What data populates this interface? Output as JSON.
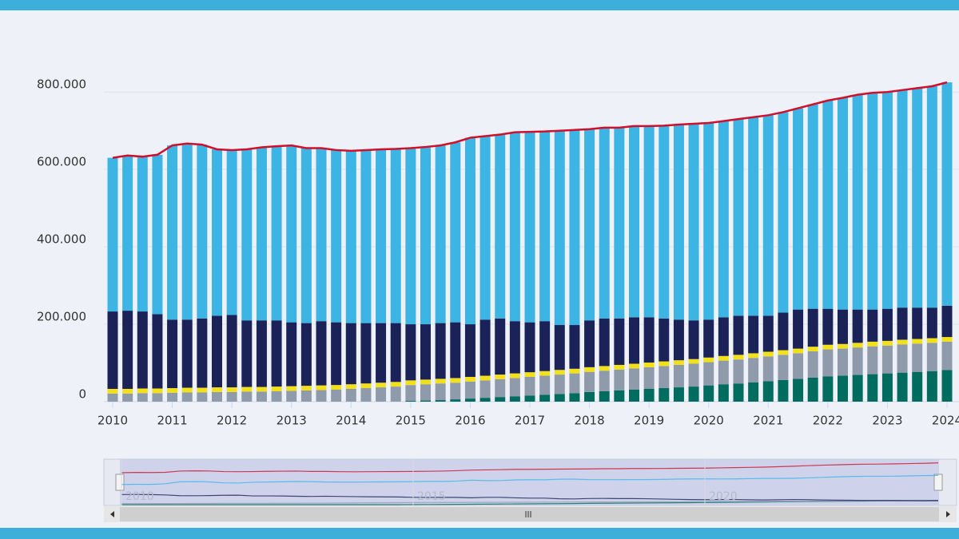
{
  "chart_data": {
    "type": "bar",
    "stacked": true,
    "categories": [
      "2010",
      null,
      null,
      null,
      "2011",
      null,
      null,
      null,
      "2012",
      null,
      null,
      null,
      "2013",
      null,
      null,
      null,
      "2014",
      null,
      null,
      null,
      "2015",
      null,
      null,
      null,
      "2016",
      null,
      null,
      null,
      "2017",
      null,
      null,
      null,
      "2018",
      null,
      null,
      null,
      "2019",
      null,
      null,
      null,
      "2020",
      null,
      null,
      null,
      "2021",
      null,
      null,
      null,
      "2022",
      null,
      null,
      null,
      "2023",
      null,
      null,
      null,
      "2024"
    ],
    "ylim": [
      0,
      850000
    ],
    "yticks": [
      0,
      {
        "value": 200000,
        "label": "200.000"
      },
      {
        "value": 400000,
        "label": "400.000"
      },
      {
        "value": 600000,
        "label": "600.000"
      },
      {
        "value": 800000,
        "label": "800.000"
      }
    ],
    "grid": true,
    "series": [
      {
        "color": "#006b5f",
        "values": [
          0,
          0,
          0,
          0,
          0,
          0,
          0,
          0,
          0,
          0,
          0,
          0,
          0,
          0,
          0,
          0,
          0,
          0,
          0,
          0,
          2000,
          3000,
          4000,
          6000,
          8000,
          10000,
          12000,
          14000,
          16000,
          18000,
          20000,
          22000,
          25000,
          27000,
          29000,
          31000,
          33000,
          35000,
          37000,
          39000,
          42000,
          45000,
          47000,
          50000,
          53000,
          56000,
          59000,
          62000,
          65000,
          67000,
          69000,
          71000,
          73000,
          75000,
          77000,
          79000,
          82000
        ]
      },
      {
        "color": "#8f9bab",
        "values": [
          21000,
          21000,
          22000,
          22000,
          23000,
          24000,
          24000,
          25000,
          25000,
          26000,
          26000,
          27000,
          28000,
          29000,
          30000,
          31000,
          33000,
          35000,
          37000,
          39000,
          41000,
          42000,
          43000,
          43000,
          44000,
          45000,
          46000,
          47000,
          48000,
          49000,
          50000,
          51000,
          52000,
          53000,
          54000,
          55000,
          56000,
          57000,
          58000,
          59000,
          60000,
          61000,
          62000,
          63000,
          64000,
          65000,
          66000,
          68000,
          70000,
          70000,
          71000,
          72000,
          72000,
          73000,
          73000,
          73000,
          73000
        ]
      },
      {
        "color": "#f2e01a",
        "values": [
          12000,
          12000,
          12000,
          12000,
          12000,
          12000,
          12000,
          12000,
          12000,
          12000,
          12000,
          12000,
          12000,
          12000,
          12000,
          12000,
          12000,
          12000,
          12000,
          12000,
          12000,
          12000,
          12000,
          12000,
          12000,
          12000,
          12000,
          12000,
          12000,
          12000,
          12000,
          12000,
          12000,
          12000,
          12000,
          12000,
          12000,
          12000,
          12000,
          12000,
          12000,
          12000,
          12000,
          12000,
          12000,
          12000,
          12000,
          12000,
          12000,
          12000,
          12000,
          12000,
          12000,
          12000,
          12000,
          12000,
          12000
        ]
      },
      {
        "color": "#1a2257",
        "values": [
          200000,
          202000,
          199000,
          192000,
          177000,
          176000,
          179000,
          185000,
          187000,
          172000,
          172000,
          171000,
          165000,
          162000,
          166000,
          162000,
          158000,
          156000,
          154000,
          152000,
          145000,
          143000,
          144000,
          144000,
          136000,
          145000,
          145000,
          135000,
          129000,
          129000,
          116000,
          113000,
          121000,
          123000,
          120000,
          120000,
          117000,
          111000,
          105000,
          100000,
          98000,
          100000,
          101000,
          97000,
          93000,
          97000,
          101000,
          98000,
          93000,
          89000,
          86000,
          83000,
          83000,
          83000,
          81000,
          79000,
          81000
        ]
      },
      {
        "color": "#3cb5e5",
        "values": [
          397000,
          401000,
          400000,
          412000,
          450000,
          455000,
          449000,
          430000,
          426000,
          442000,
          447000,
          450000,
          457000,
          452000,
          447000,
          445000,
          445000,
          447000,
          449000,
          450000,
          455000,
          458000,
          459000,
          465000,
          482000,
          474000,
          475000,
          488000,
          492000,
          490000,
          502000,
          504000,
          494000,
          493000,
          493000,
          494000,
          494000,
          498000,
          504000,
          508000,
          508000,
          507000,
          508000,
          513000,
          518000,
          518000,
          520000,
          528000,
          538000,
          547000,
          555000,
          560000,
          560000,
          562000,
          567000,
          572000,
          577000
        ]
      },
      {
        "type": "line",
        "color": "#d0102a",
        "values": [
          630000,
          636000,
          633000,
          638000,
          662000,
          667000,
          664000,
          652000,
          650000,
          652000,
          657000,
          660000,
          662000,
          655000,
          655000,
          650000,
          648000,
          650000,
          652000,
          653000,
          655000,
          658000,
          662000,
          670000,
          682000,
          686000,
          690000,
          696000,
          697000,
          698000,
          700000,
          702000,
          704000,
          708000,
          708000,
          712000,
          712000,
          713000,
          716000,
          718000,
          720000,
          725000,
          730000,
          735000,
          740000,
          748000,
          758000,
          768000,
          778000,
          785000,
          793000,
          798000,
          800000,
          805000,
          810000,
          815000,
          825000
        ]
      }
    ]
  },
  "navigator": {
    "labels": [
      "2010",
      "2015",
      "2020"
    ]
  }
}
